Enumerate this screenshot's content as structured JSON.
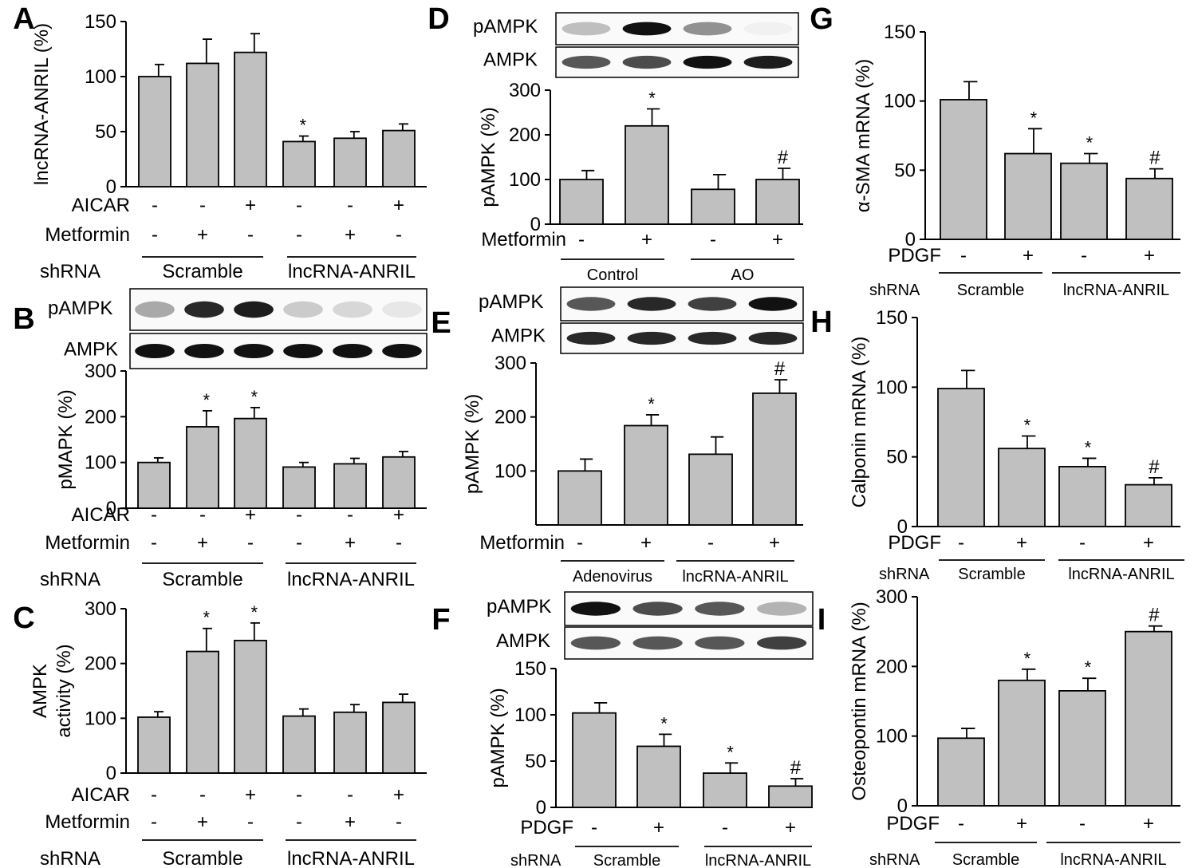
{
  "chart_data": [
    {
      "type": "bar",
      "panel": "A",
      "ylabel": "lncRNA-ANRIL (%)",
      "ylim": [
        0,
        150
      ],
      "ticks": [
        0,
        50,
        100,
        150
      ],
      "values": [
        100,
        112,
        122,
        41,
        44,
        51
      ],
      "errors": [
        11,
        22,
        17,
        5,
        6,
        6
      ],
      "marks": [
        "",
        "",
        "",
        "*",
        "",
        ""
      ],
      "treatments": [
        {
          "label": "AICAR",
          "signs": [
            "-",
            "-",
            "+",
            "-",
            "-",
            "+"
          ]
        },
        {
          "label": "Metformin",
          "signs": [
            "-",
            "+",
            "-",
            "-",
            "+",
            "-"
          ]
        }
      ],
      "shrna_label": "shRNA",
      "groups": [
        "Scramble",
        "lncRNA-ANRIL"
      ]
    },
    {
      "type": "bar",
      "panel": "B",
      "ylabel": "pMAPK (%)",
      "ylim": [
        0,
        300
      ],
      "ticks": [
        0,
        100,
        200,
        300
      ],
      "blots": [
        "pAMPK",
        "AMPK"
      ],
      "values": [
        100,
        178,
        196,
        90,
        97,
        112
      ],
      "errors": [
        10,
        35,
        24,
        10,
        12,
        12
      ],
      "marks": [
        "",
        "*",
        "*",
        "",
        "",
        ""
      ],
      "treatments": [
        {
          "label": "AICAR",
          "signs": [
            "-",
            "-",
            "+",
            "-",
            "-",
            "+"
          ]
        },
        {
          "label": "Metformin",
          "signs": [
            "-",
            "+",
            "-",
            "-",
            "+",
            "-"
          ]
        }
      ],
      "shrna_label": "shRNA",
      "groups": [
        "Scramble",
        "lncRNA-ANRIL"
      ]
    },
    {
      "type": "bar",
      "panel": "C",
      "ylabel": "AMPK activity (%)",
      "ylim": [
        0,
        300
      ],
      "ticks": [
        0,
        100,
        200,
        300
      ],
      "values": [
        102,
        222,
        242,
        104,
        111,
        129
      ],
      "errors": [
        10,
        42,
        32,
        13,
        14,
        15
      ],
      "marks": [
        "",
        "*",
        "*",
        "",
        "",
        ""
      ],
      "treatments": [
        {
          "label": "AICAR",
          "signs": [
            "-",
            "-",
            "+",
            "-",
            "-",
            "+"
          ]
        },
        {
          "label": "Metformin",
          "signs": [
            "-",
            "+",
            "-",
            "-",
            "+",
            "-"
          ]
        }
      ],
      "shrna_label": "shRNA",
      "groups": [
        "Scramble",
        "lncRNA-ANRIL"
      ]
    },
    {
      "type": "bar",
      "panel": "D",
      "ylabel": "pAMPK (%)",
      "ylim": [
        0,
        300
      ],
      "ticks": [
        0,
        100,
        200,
        300
      ],
      "blots": [
        "pAMPK",
        "AMPK"
      ],
      "values": [
        100,
        220,
        78,
        100
      ],
      "errors": [
        20,
        38,
        33,
        25
      ],
      "marks": [
        "",
        "*",
        "",
        "#"
      ],
      "treatments": [
        {
          "label": "Metformin",
          "signs": [
            "-",
            "+",
            "-",
            "+"
          ]
        }
      ],
      "shrna_label": "",
      "groups": [
        "Control",
        "AO"
      ]
    },
    {
      "type": "bar",
      "panel": "E",
      "ylabel": "pAMPK (%)",
      "ylim": [
        0,
        300
      ],
      "ticks": [
        100,
        200,
        300
      ],
      "blots": [
        "pAMPK",
        "AMPK"
      ],
      "values": [
        100,
        184,
        131,
        244
      ],
      "errors": [
        22,
        20,
        32,
        25
      ],
      "marks": [
        "",
        "*",
        "",
        "#"
      ],
      "treatments": [
        {
          "label": "Metformin",
          "signs": [
            "-",
            "+",
            "-",
            "+"
          ]
        }
      ],
      "shrna_label": "",
      "groups": [
        "Adenovirus",
        "lncRNA-ANRIL"
      ]
    },
    {
      "type": "bar",
      "panel": "F",
      "ylabel": "pAMPK (%)",
      "ylim": [
        0,
        150
      ],
      "ticks": [
        0,
        50,
        100,
        150
      ],
      "blots": [
        "pAMPK",
        "AMPK"
      ],
      "values": [
        102,
        66,
        37,
        23
      ],
      "errors": [
        11,
        13,
        11,
        8
      ],
      "marks": [
        "",
        "*",
        "*",
        "#"
      ],
      "treatments": [
        {
          "label": "PDGF",
          "signs": [
            "-",
            "+",
            "-",
            "+"
          ]
        }
      ],
      "shrna_label": "shRNA",
      "groups": [
        "Scramble",
        "lncRNA-ANRIL"
      ]
    },
    {
      "type": "bar",
      "panel": "G",
      "ylabel": "α-SMA mRNA (%)",
      "ylim": [
        0,
        150
      ],
      "ticks": [
        0,
        50,
        100,
        150
      ],
      "values": [
        101,
        62,
        55,
        44
      ],
      "errors": [
        13,
        18,
        7,
        7
      ],
      "marks": [
        "",
        "*",
        "*",
        "#"
      ],
      "treatments": [
        {
          "label": "PDGF",
          "signs": [
            "-",
            "+",
            "-",
            "+"
          ]
        }
      ],
      "shrna_label": "shRNA",
      "groups": [
        "Scramble",
        "lncRNA-ANRIL"
      ]
    },
    {
      "type": "bar",
      "panel": "H",
      "ylabel": "Calponin mRNA (%)",
      "ylim": [
        0,
        150
      ],
      "ticks": [
        0,
        50,
        100,
        150
      ],
      "values": [
        99,
        56,
        43,
        30
      ],
      "errors": [
        13,
        9,
        6,
        5
      ],
      "marks": [
        "",
        "*",
        "*",
        "#"
      ],
      "treatments": [
        {
          "label": "PDGF",
          "signs": [
            "-",
            "+",
            "-",
            "+"
          ]
        }
      ],
      "shrna_label": "shRNA",
      "groups": [
        "Scramble",
        "lncRNA-ANRIL"
      ]
    },
    {
      "type": "bar",
      "panel": "I",
      "ylabel": "Osteopontin mRNA (%)",
      "ylim": [
        0,
        300
      ],
      "ticks": [
        0,
        100,
        200,
        300
      ],
      "values": [
        97,
        180,
        165,
        250
      ],
      "errors": [
        14,
        16,
        18,
        8
      ],
      "marks": [
        "",
        "*",
        "*",
        "#"
      ],
      "treatments": [
        {
          "label": "PDGF",
          "signs": [
            "-",
            "+",
            "-",
            "+"
          ]
        }
      ],
      "shrna_label": "shRNA",
      "groups": [
        "Scramble",
        "lncRNA-ANRIL"
      ]
    }
  ]
}
